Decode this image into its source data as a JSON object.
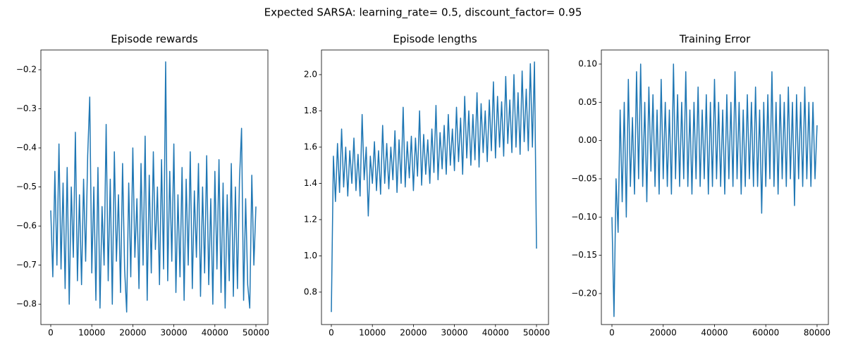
{
  "title": "Expected SARSA: learning_rate= 0.5, discount_factor= 0.95",
  "chart_data": [
    {
      "type": "line",
      "title": "Episode rewards",
      "color": "#1f77b4",
      "xlim": [
        -2405,
        52920
      ],
      "ylim": [
        -0.852,
        -0.1495
      ],
      "xticks": [
        0,
        10000,
        20000,
        30000,
        40000,
        50000
      ],
      "yticks": [
        {
          "value": -0.8,
          "label": "−0.8"
        },
        {
          "value": -0.7,
          "label": "−0.7"
        },
        {
          "value": -0.6,
          "label": "−0.6"
        },
        {
          "value": -0.5,
          "label": "−0.5"
        },
        {
          "value": -0.4,
          "label": "−0.4"
        },
        {
          "value": -0.3,
          "label": "−0.3"
        },
        {
          "value": -0.2,
          "label": "−0.2"
        }
      ],
      "x": [
        0,
        500,
        1000,
        1500,
        2000,
        2500,
        3000,
        3500,
        4000,
        4500,
        5000,
        5500,
        6000,
        6500,
        7000,
        7500,
        8000,
        8500,
        9000,
        9500,
        10000,
        10500,
        11000,
        11500,
        12000,
        12500,
        13000,
        13500,
        14000,
        14500,
        15000,
        15500,
        16000,
        16500,
        17000,
        17500,
        18000,
        18500,
        19000,
        19500,
        20000,
        20500,
        21000,
        21500,
        22000,
        22500,
        23000,
        23500,
        24000,
        24500,
        25000,
        25500,
        26000,
        26500,
        27000,
        27500,
        28000,
        28500,
        29000,
        29500,
        30000,
        30500,
        31000,
        31500,
        32000,
        32500,
        33000,
        33500,
        34000,
        34500,
        35000,
        35500,
        36000,
        36500,
        37000,
        37500,
        38000,
        38500,
        39000,
        39500,
        40000,
        40500,
        41000,
        41500,
        42000,
        42500,
        43000,
        43500,
        44000,
        44500,
        45000,
        45500,
        46000,
        46500,
        47000,
        47500,
        48000,
        48500,
        49000,
        49500,
        50000
      ],
      "values": [
        -0.56,
        -0.73,
        -0.46,
        -0.7,
        -0.39,
        -0.71,
        -0.49,
        -0.76,
        -0.45,
        -0.8,
        -0.5,
        -0.68,
        -0.36,
        -0.74,
        -0.52,
        -0.75,
        -0.48,
        -0.69,
        -0.42,
        -0.27,
        -0.72,
        -0.5,
        -0.79,
        -0.45,
        -0.81,
        -0.55,
        -0.7,
        -0.34,
        -0.74,
        -0.48,
        -0.8,
        -0.41,
        -0.69,
        -0.52,
        -0.77,
        -0.44,
        -0.71,
        -0.82,
        -0.49,
        -0.73,
        -0.4,
        -0.68,
        -0.53,
        -0.76,
        -0.44,
        -0.7,
        -0.37,
        -0.79,
        -0.47,
        -0.72,
        -0.41,
        -0.66,
        -0.5,
        -0.75,
        -0.43,
        -0.71,
        -0.18,
        -0.74,
        -0.46,
        -0.69,
        -0.39,
        -0.77,
        -0.52,
        -0.73,
        -0.45,
        -0.79,
        -0.48,
        -0.7,
        -0.41,
        -0.76,
        -0.51,
        -0.68,
        -0.44,
        -0.78,
        -0.5,
        -0.72,
        -0.42,
        -0.75,
        -0.53,
        -0.8,
        -0.46,
        -0.71,
        -0.43,
        -0.77,
        -0.49,
        -0.81,
        -0.52,
        -0.74,
        -0.44,
        -0.78,
        -0.5,
        -0.76,
        -0.48,
        -0.35,
        -0.79,
        -0.53,
        -0.75,
        -0.81,
        -0.47,
        -0.7,
        -0.55
      ]
    },
    {
      "type": "line",
      "title": "Episode lengths",
      "color": "#1f77b4",
      "xlim": [
        -2405,
        52920
      ],
      "ylim": [
        0.621,
        2.136
      ],
      "xticks": [
        0,
        10000,
        20000,
        30000,
        40000,
        50000
      ],
      "yticks": [
        0.8,
        {
          "value": 1.0,
          "label": "1.0"
        },
        1.2,
        1.4,
        1.6,
        1.8,
        {
          "value": 2.0,
          "label": "2.0"
        }
      ],
      "x": [
        0,
        500,
        1000,
        1500,
        2000,
        2500,
        3000,
        3500,
        4000,
        4500,
        5000,
        5500,
        6000,
        6500,
        7000,
        7500,
        8000,
        8500,
        9000,
        9500,
        10000,
        10500,
        11000,
        11500,
        12000,
        12500,
        13000,
        13500,
        14000,
        14500,
        15000,
        15500,
        16000,
        16500,
        17000,
        17500,
        18000,
        18500,
        19000,
        19500,
        20000,
        20500,
        21000,
        21500,
        22000,
        22500,
        23000,
        23500,
        24000,
        24500,
        25000,
        25500,
        26000,
        26500,
        27000,
        27500,
        28000,
        28500,
        29000,
        29500,
        30000,
        30500,
        31000,
        31500,
        32000,
        32500,
        33000,
        33500,
        34000,
        34500,
        35000,
        35500,
        36000,
        36500,
        37000,
        37500,
        38000,
        38500,
        39000,
        39500,
        40000,
        40500,
        41000,
        41500,
        42000,
        42500,
        43000,
        43500,
        44000,
        44500,
        45000,
        45500,
        46000,
        46500,
        47000,
        47500,
        48000,
        48500,
        49000,
        49500,
        50000
      ],
      "values": [
        0.69,
        1.55,
        1.3,
        1.62,
        1.35,
        1.7,
        1.38,
        1.6,
        1.33,
        1.58,
        1.4,
        1.65,
        1.36,
        1.56,
        1.33,
        1.78,
        1.42,
        1.6,
        1.22,
        1.55,
        1.4,
        1.63,
        1.36,
        1.58,
        1.34,
        1.72,
        1.4,
        1.62,
        1.37,
        1.6,
        1.42,
        1.69,
        1.35,
        1.64,
        1.4,
        1.82,
        1.38,
        1.63,
        1.43,
        1.66,
        1.36,
        1.65,
        1.44,
        1.8,
        1.39,
        1.67,
        1.45,
        1.64,
        1.4,
        1.7,
        1.46,
        1.83,
        1.42,
        1.68,
        1.48,
        1.72,
        1.45,
        1.78,
        1.5,
        1.7,
        1.47,
        1.82,
        1.52,
        1.76,
        1.45,
        1.88,
        1.54,
        1.8,
        1.5,
        1.78,
        1.53,
        1.9,
        1.49,
        1.84,
        1.57,
        1.8,
        1.52,
        1.86,
        1.58,
        1.96,
        1.54,
        1.88,
        1.6,
        1.85,
        1.55,
        1.99,
        1.62,
        1.86,
        1.57,
        2.0,
        1.6,
        1.9,
        1.56,
        2.02,
        1.63,
        1.92,
        1.58,
        2.06,
        1.6,
        2.07,
        1.04
      ]
    },
    {
      "type": "line",
      "title": "Training Error",
      "color": "#1f77b4",
      "xlim": [
        -4124,
        84412
      ],
      "ylim": [
        -0.2405,
        0.1184
      ],
      "xticks": [
        0,
        20000,
        40000,
        60000,
        80000
      ],
      "yticks": [
        {
          "value": -0.2,
          "label": "−0.20"
        },
        {
          "value": -0.15,
          "label": "−0.15"
        },
        {
          "value": -0.1,
          "label": "−0.10"
        },
        {
          "value": -0.05,
          "label": "−0.05"
        },
        {
          "value": 0,
          "label": "0.00"
        },
        0.05,
        {
          "value": 0.1,
          "label": "0.10"
        }
      ],
      "x": [
        0,
        800,
        1600,
        2400,
        3200,
        4000,
        4800,
        5600,
        6400,
        7200,
        8000,
        8800,
        9600,
        10400,
        11200,
        12000,
        12800,
        13600,
        14400,
        15200,
        16000,
        16800,
        17600,
        18400,
        19200,
        20000,
        20800,
        21600,
        22400,
        23200,
        24000,
        24800,
        25600,
        26400,
        27200,
        28000,
        28800,
        29600,
        30400,
        31200,
        32000,
        32800,
        33600,
        34400,
        35200,
        36000,
        36800,
        37600,
        38400,
        39200,
        40000,
        40800,
        41600,
        42400,
        43200,
        44000,
        44800,
        45600,
        46400,
        47200,
        48000,
        48800,
        49600,
        50400,
        51200,
        52000,
        52800,
        53600,
        54400,
        55200,
        56000,
        56800,
        57600,
        58400,
        59200,
        60000,
        60800,
        61600,
        62400,
        63200,
        64000,
        64800,
        65600,
        66400,
        67200,
        68000,
        68800,
        69600,
        70400,
        71200,
        72000,
        72800,
        73600,
        74400,
        75200,
        76000,
        76800,
        77600,
        78400,
        79200,
        80000
      ],
      "values": [
        -0.1,
        -0.23,
        -0.05,
        -0.12,
        0.04,
        -0.08,
        0.05,
        -0.1,
        0.08,
        -0.06,
        0.03,
        -0.07,
        0.09,
        -0.05,
        0.1,
        -0.06,
        0.05,
        -0.08,
        0.07,
        -0.04,
        0.06,
        -0.06,
        0.04,
        -0.07,
        0.08,
        -0.05,
        0.05,
        -0.06,
        0.04,
        -0.07,
        0.1,
        -0.05,
        0.06,
        -0.06,
        0.05,
        -0.05,
        0.09,
        -0.06,
        0.04,
        -0.07,
        0.05,
        -0.05,
        0.07,
        -0.06,
        0.04,
        -0.05,
        0.06,
        -0.07,
        0.05,
        -0.06,
        0.08,
        -0.05,
        0.05,
        -0.06,
        0.04,
        -0.07,
        0.06,
        -0.05,
        0.05,
        -0.06,
        0.09,
        -0.05,
        0.05,
        -0.07,
        0.04,
        -0.06,
        0.06,
        -0.05,
        0.05,
        -0.06,
        0.07,
        -0.06,
        0.04,
        -0.095,
        0.05,
        -0.06,
        0.06,
        -0.05,
        0.09,
        -0.06,
        0.05,
        -0.07,
        0.06,
        -0.05,
        0.05,
        -0.06,
        0.07,
        -0.05,
        0.05,
        -0.085,
        0.06,
        -0.05,
        0.05,
        -0.06,
        0.07,
        -0.05,
        0.05,
        -0.06,
        0.05,
        -0.05,
        0.02
      ]
    }
  ]
}
